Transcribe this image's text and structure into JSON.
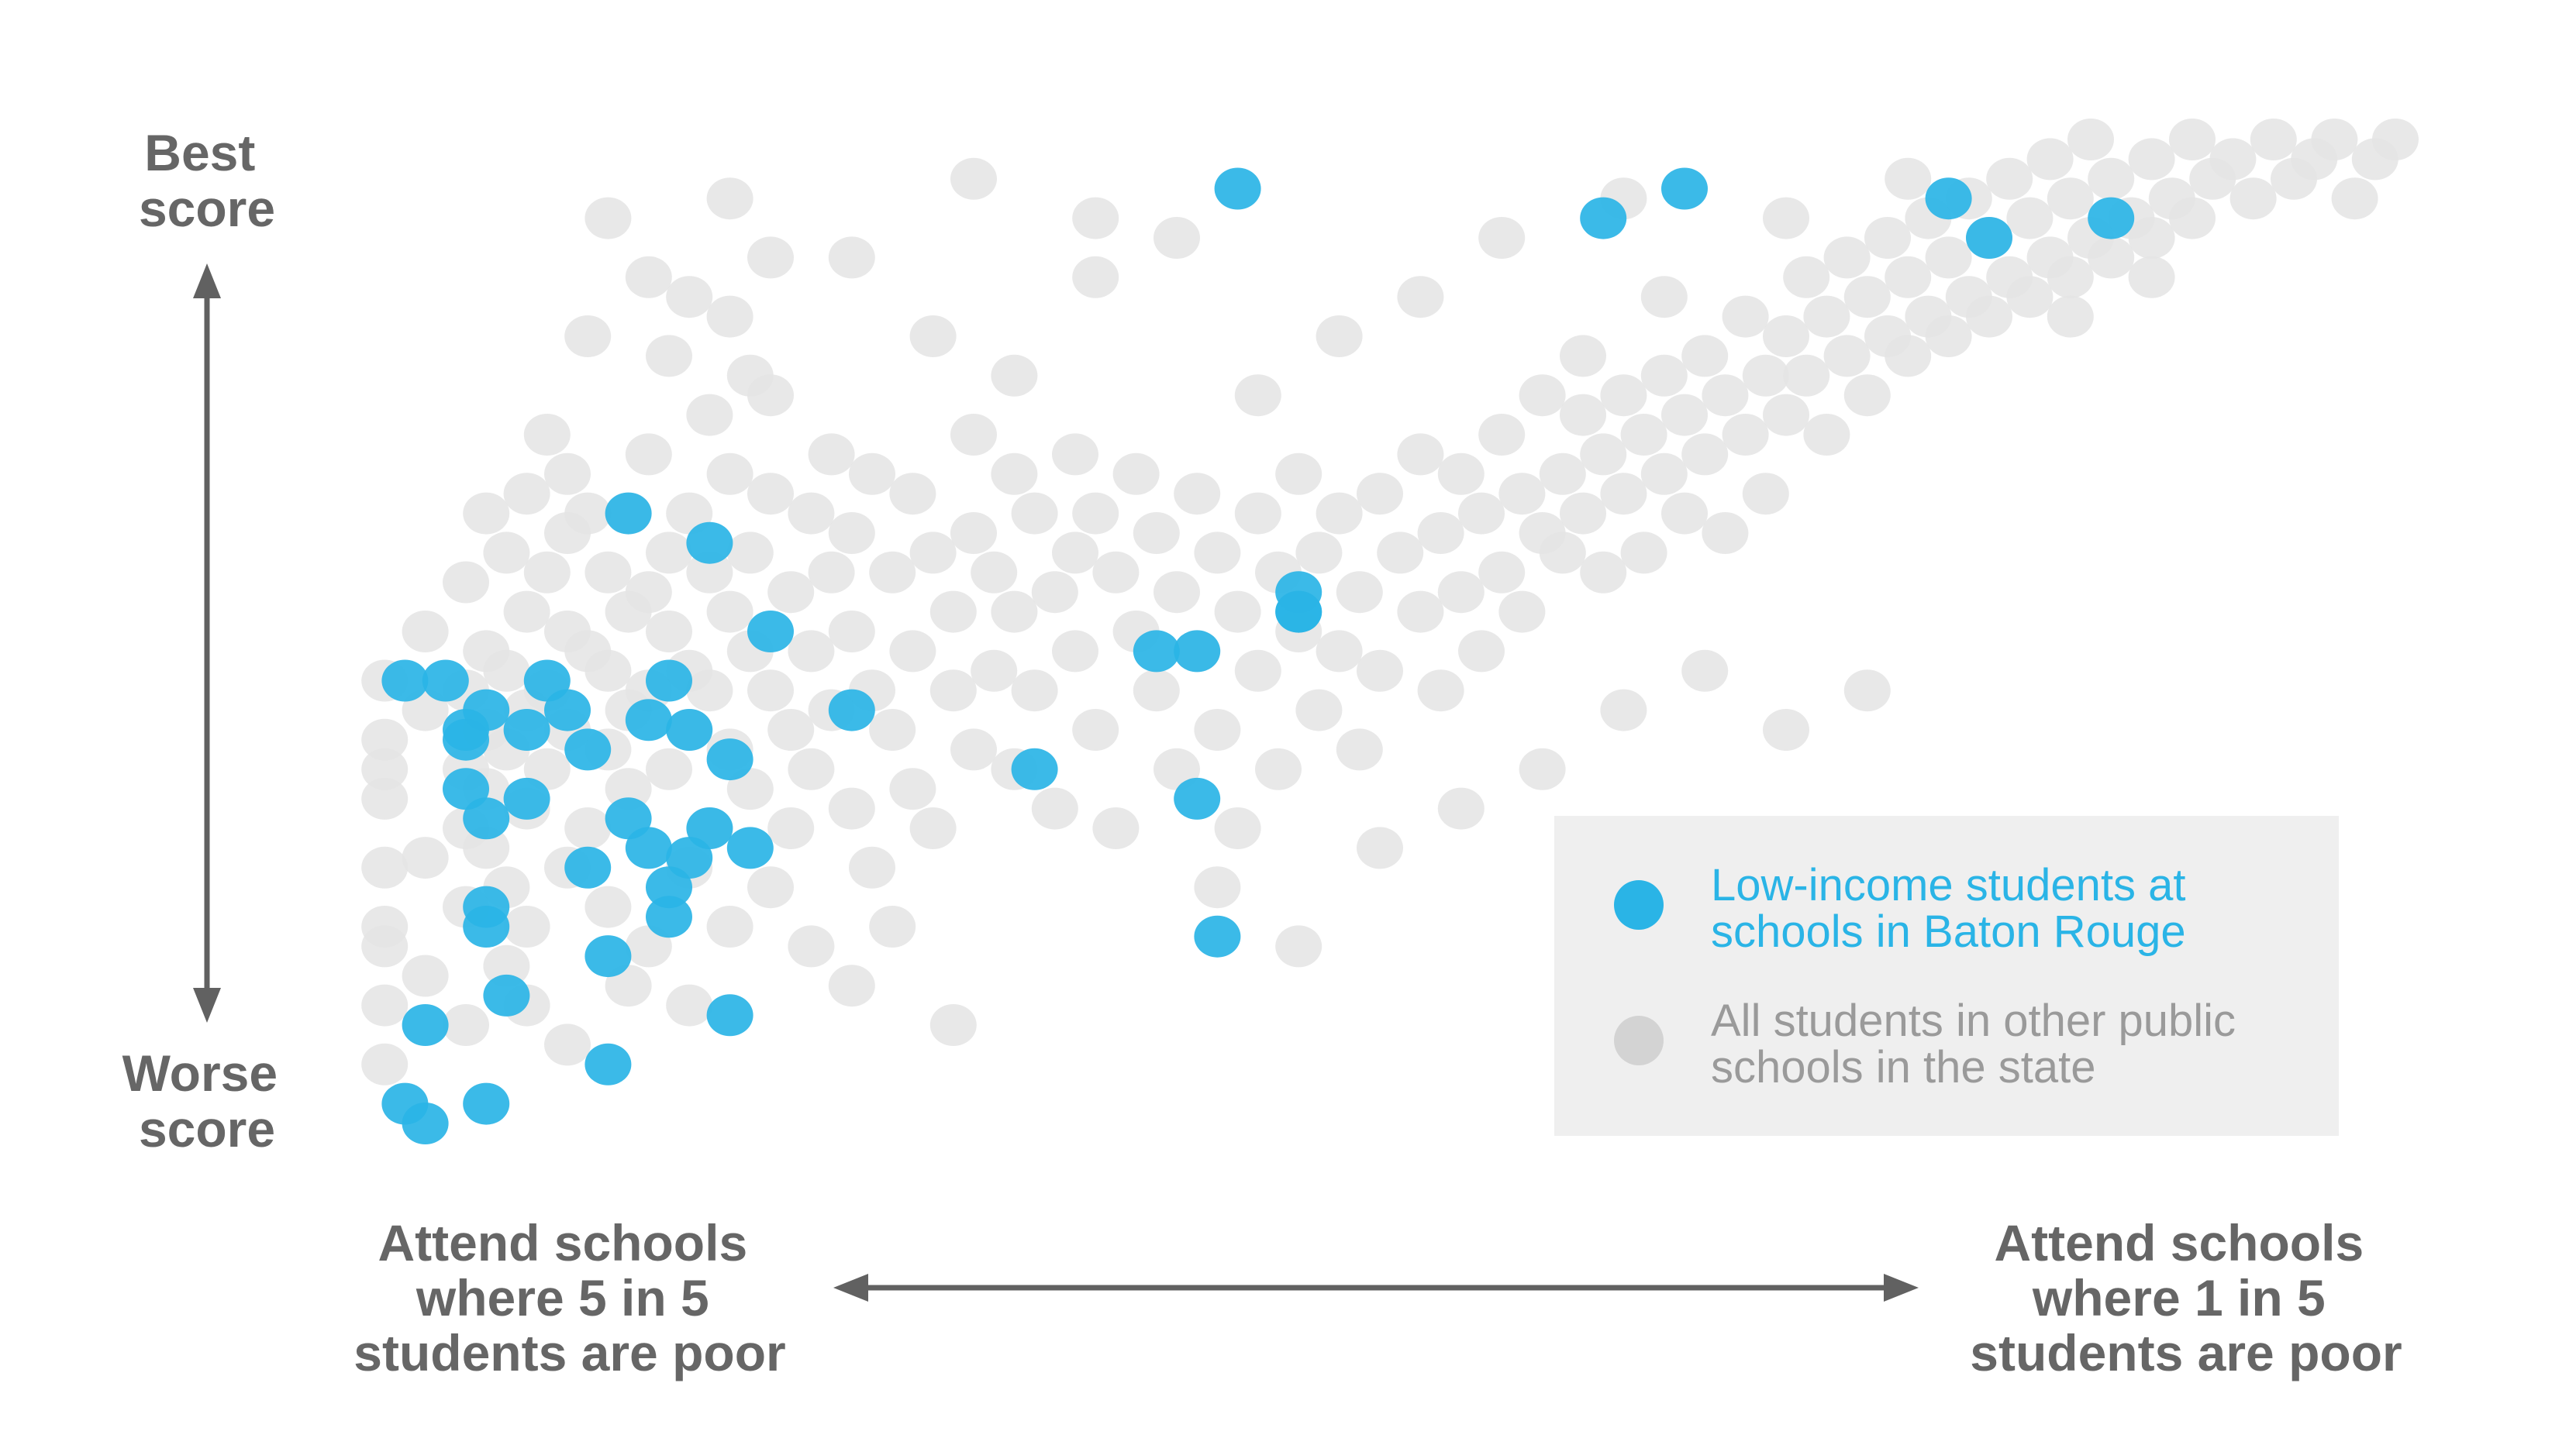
{
  "colors": {
    "highlight": "#2ab4e6",
    "background_dots": "#e4e4e4",
    "axis": "#616161",
    "legend_bg": "#efefef",
    "legend_highlight_text": "#2ab4e6",
    "legend_other_text": "#9a9a9a"
  },
  "axes": {
    "y_top_label": [
      "Best",
      "score"
    ],
    "y_bottom_label": [
      "Worse",
      "score"
    ],
    "x_left_label": [
      "Attend schools",
      "where 5 in 5",
      "students are poor"
    ],
    "x_right_label": [
      "Attend schools",
      "where 1 in 5",
      "students are poor"
    ]
  },
  "legend": {
    "items": [
      {
        "label_lines": [
          "Low-income students at",
          "schools in Baton Rouge"
        ],
        "color": "#2ab4e6"
      },
      {
        "label_lines": [
          "All students in other public",
          "schools in the state"
        ],
        "color": "#d3d3d3"
      }
    ]
  },
  "chart_data": {
    "type": "scatter",
    "xlim": [
      0,
      100
    ],
    "ylim": [
      0,
      100
    ],
    "series": [
      {
        "name": "All students in other public schools in the state",
        "points": [
          [
            1,
            45
          ],
          [
            1,
            39
          ],
          [
            1,
            36
          ],
          [
            1,
            33
          ],
          [
            1,
            26
          ],
          [
            1,
            20
          ],
          [
            1,
            18
          ],
          [
            1,
            12
          ],
          [
            1,
            6
          ],
          [
            3,
            50
          ],
          [
            3,
            42
          ],
          [
            3,
            27
          ],
          [
            3,
            15
          ],
          [
            5,
            55
          ],
          [
            5,
            44
          ],
          [
            5,
            36
          ],
          [
            5,
            30
          ],
          [
            5,
            22
          ],
          [
            5,
            10
          ],
          [
            6,
            62
          ],
          [
            6,
            48
          ],
          [
            6,
            40
          ],
          [
            6,
            34
          ],
          [
            6,
            28
          ],
          [
            7,
            58
          ],
          [
            7,
            46
          ],
          [
            7,
            38
          ],
          [
            7,
            24
          ],
          [
            7,
            16
          ],
          [
            8,
            64
          ],
          [
            8,
            52
          ],
          [
            8,
            42
          ],
          [
            8,
            32
          ],
          [
            8,
            20
          ],
          [
            8,
            12
          ],
          [
            9,
            70
          ],
          [
            9,
            56
          ],
          [
            9,
            44
          ],
          [
            9,
            36
          ],
          [
            10,
            66
          ],
          [
            10,
            60
          ],
          [
            10,
            50
          ],
          [
            10,
            40
          ],
          [
            10,
            26
          ],
          [
            10,
            8
          ],
          [
            11,
            80
          ],
          [
            11,
            62
          ],
          [
            11,
            48
          ],
          [
            11,
            30
          ],
          [
            12,
            56
          ],
          [
            12,
            46
          ],
          [
            12,
            38
          ],
          [
            12,
            22
          ],
          [
            13,
            62
          ],
          [
            13,
            52
          ],
          [
            13,
            42
          ],
          [
            13,
            34
          ],
          [
            13,
            14
          ],
          [
            14,
            86
          ],
          [
            14,
            68
          ],
          [
            14,
            54
          ],
          [
            14,
            44
          ],
          [
            14,
            18
          ],
          [
            15,
            78
          ],
          [
            15,
            58
          ],
          [
            15,
            50
          ],
          [
            15,
            36
          ],
          [
            16,
            84
          ],
          [
            16,
            62
          ],
          [
            16,
            46
          ],
          [
            16,
            40
          ],
          [
            16,
            26
          ],
          [
            16,
            12
          ],
          [
            17,
            72
          ],
          [
            17,
            56
          ],
          [
            17,
            44
          ],
          [
            17,
            30
          ],
          [
            18,
            82
          ],
          [
            18,
            66
          ],
          [
            18,
            52
          ],
          [
            18,
            38
          ],
          [
            18,
            20
          ],
          [
            19,
            76
          ],
          [
            19,
            58
          ],
          [
            19,
            48
          ],
          [
            19,
            34
          ],
          [
            20,
            74
          ],
          [
            20,
            64
          ],
          [
            20,
            44
          ],
          [
            20,
            24
          ],
          [
            21,
            54
          ],
          [
            21,
            40
          ],
          [
            21,
            30
          ],
          [
            22,
            62
          ],
          [
            22,
            48
          ],
          [
            22,
            36
          ],
          [
            22,
            18
          ],
          [
            23,
            68
          ],
          [
            23,
            56
          ],
          [
            23,
            42
          ],
          [
            24,
            60
          ],
          [
            24,
            50
          ],
          [
            24,
            32
          ],
          [
            24,
            14
          ],
          [
            25,
            66
          ],
          [
            25,
            44
          ],
          [
            25,
            26
          ],
          [
            26,
            56
          ],
          [
            26,
            40
          ],
          [
            26,
            20
          ],
          [
            27,
            64
          ],
          [
            27,
            48
          ],
          [
            27,
            34
          ],
          [
            28,
            58
          ],
          [
            28,
            30
          ],
          [
            29,
            52
          ],
          [
            29,
            44
          ],
          [
            29,
            10
          ],
          [
            30,
            70
          ],
          [
            30,
            60
          ],
          [
            30,
            38
          ],
          [
            31,
            56
          ],
          [
            31,
            46
          ],
          [
            32,
            66
          ],
          [
            32,
            52
          ],
          [
            32,
            36
          ],
          [
            33,
            62
          ],
          [
            33,
            44
          ],
          [
            34,
            54
          ],
          [
            34,
            32
          ],
          [
            35,
            68
          ],
          [
            35,
            58
          ],
          [
            35,
            48
          ],
          [
            36,
            62
          ],
          [
            36,
            40
          ],
          [
            37,
            56
          ],
          [
            37,
            30
          ],
          [
            38,
            66
          ],
          [
            38,
            50
          ],
          [
            39,
            60
          ],
          [
            39,
            44
          ],
          [
            40,
            54
          ],
          [
            40,
            36
          ],
          [
            41,
            64
          ],
          [
            41,
            48
          ],
          [
            42,
            58
          ],
          [
            42,
            40
          ],
          [
            43,
            52
          ],
          [
            43,
            30
          ],
          [
            44,
            62
          ],
          [
            44,
            46
          ],
          [
            45,
            56
          ],
          [
            45,
            36
          ],
          [
            46,
            66
          ],
          [
            46,
            50
          ],
          [
            47,
            58
          ],
          [
            47,
            42
          ],
          [
            48,
            62
          ],
          [
            48,
            48
          ],
          [
            49,
            54
          ],
          [
            49,
            38
          ],
          [
            50,
            64
          ],
          [
            50,
            46
          ],
          [
            51,
            58
          ],
          [
            52,
            68
          ],
          [
            52,
            52
          ],
          [
            53,
            60
          ],
          [
            53,
            44
          ],
          [
            54,
            66
          ],
          [
            54,
            54
          ],
          [
            55,
            62
          ],
          [
            55,
            48
          ],
          [
            56,
            70
          ],
          [
            56,
            56
          ],
          [
            57,
            64
          ],
          [
            57,
            52
          ],
          [
            58,
            74
          ],
          [
            58,
            60
          ],
          [
            59,
            66
          ],
          [
            59,
            58
          ],
          [
            60,
            72
          ],
          [
            60,
            62
          ],
          [
            61,
            68
          ],
          [
            61,
            56
          ],
          [
            62,
            74
          ],
          [
            62,
            64
          ],
          [
            63,
            70
          ],
          [
            63,
            58
          ],
          [
            64,
            76
          ],
          [
            64,
            66
          ],
          [
            65,
            72
          ],
          [
            65,
            62
          ],
          [
            66,
            78
          ],
          [
            66,
            68
          ],
          [
            67,
            74
          ],
          [
            67,
            60
          ],
          [
            68,
            82
          ],
          [
            68,
            70
          ],
          [
            69,
            76
          ],
          [
            69,
            64
          ],
          [
            70,
            80
          ],
          [
            70,
            72
          ],
          [
            71,
            86
          ],
          [
            71,
            76
          ],
          [
            72,
            82
          ],
          [
            72,
            70
          ],
          [
            73,
            88
          ],
          [
            73,
            78
          ],
          [
            74,
            84
          ],
          [
            74,
            74
          ],
          [
            75,
            90
          ],
          [
            75,
            80
          ],
          [
            76,
            86
          ],
          [
            76,
            78
          ],
          [
            77,
            92
          ],
          [
            77,
            82
          ],
          [
            78,
            88
          ],
          [
            78,
            80
          ],
          [
            79,
            94
          ],
          [
            79,
            84
          ],
          [
            80,
            90
          ],
          [
            80,
            82
          ],
          [
            81,
            96
          ],
          [
            81,
            86
          ],
          [
            82,
            92
          ],
          [
            82,
            84
          ],
          [
            83,
            98
          ],
          [
            83,
            88
          ],
          [
            84,
            94
          ],
          [
            84,
            86
          ],
          [
            85,
            100
          ],
          [
            85,
            90
          ],
          [
            86,
            96
          ],
          [
            86,
            88
          ],
          [
            87,
            92
          ],
          [
            88,
            98
          ],
          [
            88,
            90
          ],
          [
            89,
            94
          ],
          [
            90,
            100
          ],
          [
            90,
            92
          ],
          [
            91,
            96
          ],
          [
            92,
            98
          ],
          [
            93,
            94
          ],
          [
            94,
            100
          ],
          [
            95,
            96
          ],
          [
            96,
            98
          ],
          [
            97,
            100
          ],
          [
            98,
            94
          ],
          [
            99,
            98
          ],
          [
            100,
            100
          ],
          [
            28,
            80
          ],
          [
            32,
            76
          ],
          [
            36,
            86
          ],
          [
            40,
            90
          ],
          [
            44,
            74
          ],
          [
            48,
            80
          ],
          [
            52,
            84
          ],
          [
            56,
            90
          ],
          [
            60,
            78
          ],
          [
            64,
            84
          ],
          [
            12,
            92
          ],
          [
            18,
            94
          ],
          [
            24,
            88
          ],
          [
            30,
            96
          ],
          [
            36,
            92
          ],
          [
            62,
            94
          ],
          [
            70,
            92
          ],
          [
            76,
            96
          ],
          [
            84,
            82
          ],
          [
            88,
            86
          ],
          [
            42,
            24
          ],
          [
            46,
            18
          ],
          [
            50,
            28
          ],
          [
            54,
            32
          ],
          [
            58,
            36
          ],
          [
            62,
            42
          ],
          [
            66,
            46
          ],
          [
            70,
            40
          ],
          [
            74,
            44
          ],
          [
            20,
            88
          ]
        ]
      },
      {
        "name": "Low-income students at schools in Baton Rouge",
        "points": [
          [
            2,
            45
          ],
          [
            2,
            2
          ],
          [
            3,
            0
          ],
          [
            3,
            10
          ],
          [
            4,
            45
          ],
          [
            5,
            34
          ],
          [
            5,
            39
          ],
          [
            5,
            40
          ],
          [
            6,
            31
          ],
          [
            6,
            42
          ],
          [
            6,
            22
          ],
          [
            6,
            20
          ],
          [
            6,
            2
          ],
          [
            7,
            13
          ],
          [
            8,
            33
          ],
          [
            8,
            40
          ],
          [
            9,
            45
          ],
          [
            10,
            42
          ],
          [
            11,
            38
          ],
          [
            11,
            26
          ],
          [
            12,
            17
          ],
          [
            12,
            6
          ],
          [
            13,
            31
          ],
          [
            13,
            62
          ],
          [
            14,
            41
          ],
          [
            14,
            28
          ],
          [
            15,
            45
          ],
          [
            15,
            24
          ],
          [
            15,
            21
          ],
          [
            16,
            40
          ],
          [
            16,
            27
          ],
          [
            17,
            30
          ],
          [
            17,
            59
          ],
          [
            18,
            37
          ],
          [
            18,
            11
          ],
          [
            19,
            28
          ],
          [
            20,
            50
          ],
          [
            24,
            42
          ],
          [
            33,
            36
          ],
          [
            39,
            48
          ],
          [
            41,
            33
          ],
          [
            41,
            48
          ],
          [
            42,
            19
          ],
          [
            46,
            54
          ],
          [
            46,
            52
          ],
          [
            46,
            52
          ],
          [
            43,
            95
          ],
          [
            61,
            92
          ],
          [
            65,
            95
          ],
          [
            80,
            90
          ],
          [
            86,
            92
          ],
          [
            78,
            94
          ]
        ]
      }
    ]
  }
}
